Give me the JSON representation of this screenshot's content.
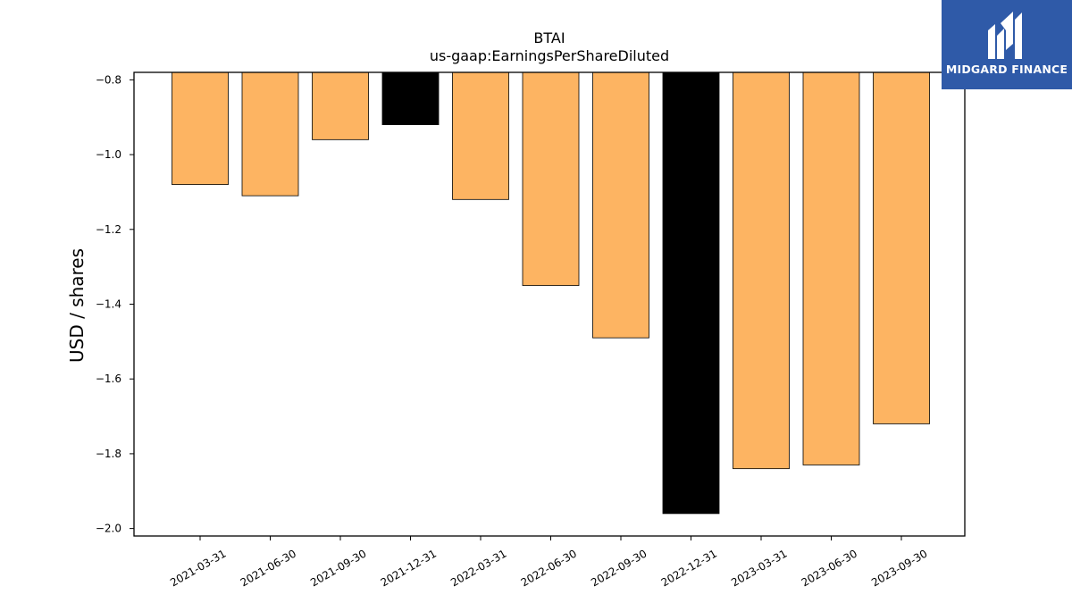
{
  "chart_data": {
    "type": "bar",
    "title": "BTAI",
    "subtitle": "us-gaap:EarningsPerShareDiluted",
    "xlabel": "",
    "ylabel": "USD / shares",
    "ylim": [
      -2.02,
      -0.78
    ],
    "yticks": [
      -0.8,
      -1.0,
      -1.2,
      -1.4,
      -1.6,
      -1.8,
      -2.0
    ],
    "ytick_labels": [
      "−0.8",
      "−1.0",
      "−1.2",
      "−1.4",
      "−1.6",
      "−1.8",
      "−2.0"
    ],
    "categories": [
      "2021-03-31",
      "2021-06-30",
      "2021-09-30",
      "2021-12-31",
      "2022-03-31",
      "2022-06-30",
      "2022-09-30",
      "2022-12-31",
      "2023-03-31",
      "2023-06-30",
      "2023-09-30"
    ],
    "values": [
      -1.08,
      -1.11,
      -0.96,
      -0.92,
      -1.12,
      -1.35,
      -1.49,
      -1.96,
      -1.84,
      -1.83,
      -1.72
    ],
    "bar_colors": [
      "#fdb462",
      "#fdb462",
      "#fdb462",
      "#000000",
      "#fdb462",
      "#fdb462",
      "#fdb462",
      "#000000",
      "#fdb462",
      "#fdb462",
      "#fdb462"
    ],
    "grid": false,
    "legend": "none"
  },
  "logo": {
    "text": "MIDGARD FINANCE",
    "background": "#2f5aa8",
    "icon": "midgard-m-logo-icon"
  }
}
